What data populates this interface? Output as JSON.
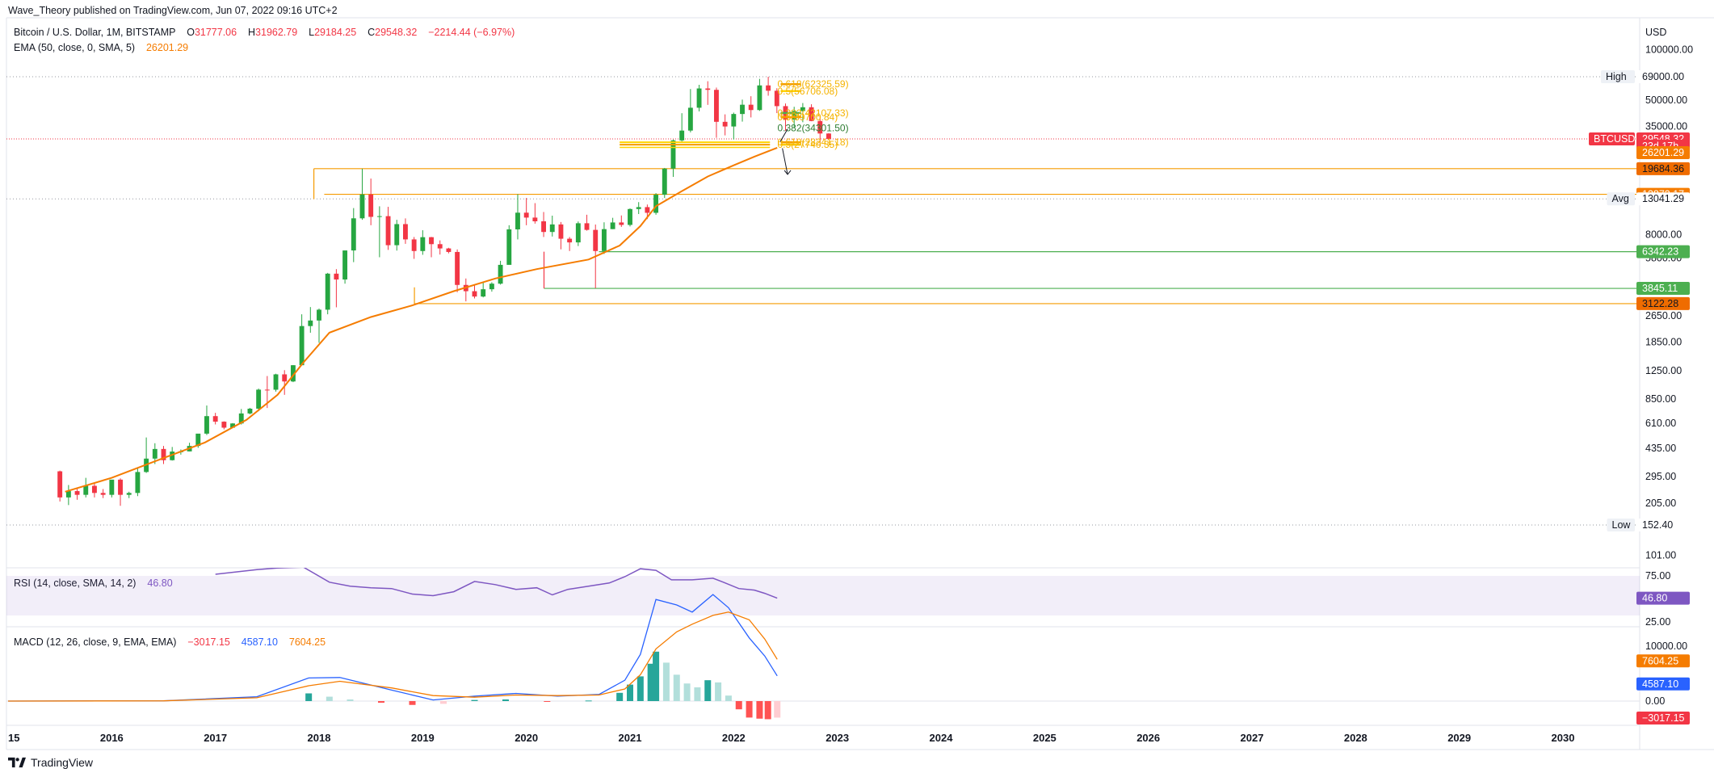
{
  "header": {
    "published": "Wave_Theory published on TradingView.com, Jun 07, 2022 09:16 UTC+2"
  },
  "legend": {
    "symbol": "Bitcoin / U.S. Dollar, 1M, BITSTAMP",
    "o_label": "O",
    "o_value": "31777.06",
    "h_label": "H",
    "h_value": "31962.79",
    "l_label": "L",
    "l_value": "29184.25",
    "c_label": "C",
    "c_value": "29548.32",
    "change": "−2214.44 (−6.97%)",
    "ema_label": "EMA (50, close, 0, SMA, 5)",
    "ema_value": "26201.29",
    "rsi_label": "RSI (14, close, SMA, 14, 2)",
    "rsi_value": "46.80",
    "macd_label": "MACD (12, 26, close, 9, EMA, EMA)",
    "macd_hist": "−3017.15",
    "macd_line": "4587.10",
    "macd_signal": "7604.25"
  },
  "price_axis": {
    "currency": "USD",
    "ticks": [
      "100000.00",
      "50000.00",
      "35000.00",
      "20000.00",
      "8000.00",
      "5800.00",
      "2650.00",
      "1850.00",
      "1250.00",
      "850.00",
      "610.00",
      "435.00",
      "295.00",
      "205.00",
      "101.00"
    ],
    "tick_values": [
      100000,
      50000,
      35000,
      20000,
      8000,
      5800,
      2650,
      1850,
      1250,
      850,
      610,
      435,
      295,
      205,
      101
    ],
    "badges": [
      {
        "text": "69000.00",
        "price": 69000,
        "tag": "High",
        "style": "plain"
      },
      {
        "text": "29548.32",
        "price": 29548.32,
        "tag": "BTCUSD",
        "style": "red"
      },
      {
        "text": "23d 17h",
        "price": 26800,
        "tag": "",
        "style": "red"
      },
      {
        "text": "26201.29",
        "price": 24500,
        "tag": "",
        "style": "orange"
      },
      {
        "text": "19684.36",
        "price": 19684.36,
        "tag": "",
        "style": "darkorange"
      },
      {
        "text": "13873.17",
        "price": 13873.17,
        "tag": "",
        "style": "orange"
      },
      {
        "text": "13041.29",
        "price": 13041.29,
        "tag": "Avg",
        "style": "plain"
      },
      {
        "text": "6342.23",
        "price": 6342.23,
        "tag": "",
        "style": "green"
      },
      {
        "text": "3845.11",
        "price": 3845.11,
        "tag": "",
        "style": "green"
      },
      {
        "text": "3122.28",
        "price": 3122.28,
        "tag": "",
        "style": "darkorange"
      },
      {
        "text": "152.40",
        "price": 152.4,
        "tag": "Low",
        "style": "plain"
      }
    ]
  },
  "rsi_axis": {
    "ticks": [
      "75.00",
      "25.00"
    ],
    "badge": "46.80"
  },
  "macd_axis": {
    "ticks": [
      "10000.00",
      "0.00"
    ],
    "badges": [
      {
        "text": "7604.25",
        "value": 7604.25,
        "style": "orange"
      },
      {
        "text": "4587.10",
        "value": 4587.1,
        "style": "blue"
      },
      {
        "text": "−3017.15",
        "value": -3017.15,
        "style": "red"
      }
    ]
  },
  "time_axis": {
    "labels": [
      "15",
      "2016",
      "2017",
      "2018",
      "2019",
      "2020",
      "2021",
      "2022",
      "2023",
      "2024",
      "2025",
      "2026",
      "2027",
      "2028",
      "2029",
      "2030"
    ],
    "years": [
      2015.0,
      2016,
      2017,
      2018,
      2019,
      2020,
      2021,
      2022,
      2023,
      2024,
      2025,
      2026,
      2027,
      2028,
      2029,
      2030
    ]
  },
  "fib_labels": [
    {
      "text": "0.618(62325.59)",
      "price": 62325.59
    },
    {
      "text": "0.5(56706.08)",
      "price": 56706.08
    },
    {
      "text": "0.382(42107.33)",
      "price": 42107.33
    },
    {
      "text": "0.5(39700.84)",
      "price": 39700.84
    },
    {
      "text": "0.382(34301.50)",
      "price": 34301.5,
      "color": "green"
    },
    {
      "text": "0.618(28241.18)",
      "price": 28241.18
    },
    {
      "text": "0.5(27740.35)",
      "price": 27300
    }
  ],
  "chart_data": {
    "type": "candlestick",
    "title": "Bitcoin / U.S. Dollar, 1M, BITSTAMP",
    "ylabel": "USD",
    "y_scale": "log",
    "ylim": [
      85,
      130000
    ],
    "x_range": [
      2014.9,
      2030.7
    ],
    "horizontal_levels": [
      69000,
      19684.36,
      13873.17,
      6342.23,
      3845.11,
      3122.28,
      152.4,
      13041.29
    ],
    "candles_ohlc": [
      [
        317,
        320,
        210,
        222
      ],
      [
        222,
        263,
        200,
        242
      ],
      [
        242,
        254,
        215,
        230
      ],
      [
        230,
        290,
        222,
        260
      ],
      [
        260,
        270,
        222,
        236
      ],
      [
        236,
        249,
        220,
        230
      ],
      [
        230,
        265,
        222,
        283
      ],
      [
        283,
        288,
        198,
        230
      ],
      [
        230,
        240,
        220,
        236
      ],
      [
        236,
        330,
        226,
        314
      ],
      [
        314,
        503,
        310,
        377
      ],
      [
        377,
        465,
        350,
        430
      ],
      [
        430,
        448,
        350,
        369
      ],
      [
        369,
        442,
        367,
        415
      ],
      [
        415,
        427,
        398,
        416
      ],
      [
        416,
        468,
        416,
        448
      ],
      [
        448,
        463,
        437,
        530
      ],
      [
        530,
        778,
        520,
        673
      ],
      [
        673,
        704,
        601,
        624
      ],
      [
        624,
        627,
        562,
        575
      ],
      [
        575,
        612,
        575,
        609
      ],
      [
        609,
        742,
        600,
        698
      ],
      [
        698,
        753,
        690,
        745
      ],
      [
        745,
        980,
        720,
        966
      ],
      [
        966,
        1163,
        752,
        965
      ],
      [
        965,
        1200,
        940,
        1190
      ],
      [
        1190,
        1260,
        900,
        1080
      ],
      [
        1080,
        1350,
        1070,
        1348
      ],
      [
        1348,
        2700,
        1350,
        2300
      ],
      [
        2300,
        2980,
        2100,
        2480
      ],
      [
        2480,
        2920,
        1830,
        2875
      ],
      [
        2875,
        4750,
        2700,
        4700
      ],
      [
        4700,
        5000,
        2970,
        4340
      ],
      [
        4340,
        6450,
        4100,
        6450
      ],
      [
        6450,
        11500,
        5500,
        10000
      ],
      [
        10000,
        19666,
        9800,
        13850
      ],
      [
        13850,
        17200,
        9100,
        10200
      ],
      [
        10200,
        11780,
        5880,
        10300
      ],
      [
        10300,
        11700,
        6500,
        6930
      ],
      [
        6930,
        9800,
        6440,
        9240
      ],
      [
        9240,
        9990,
        7060,
        7500
      ],
      [
        7500,
        7750,
        5750,
        6400
      ],
      [
        6400,
        8500,
        6080,
        7730
      ],
      [
        7730,
        7760,
        5880,
        7030
      ],
      [
        7030,
        7400,
        6100,
        6630
      ],
      [
        6630,
        6690,
        6200,
        6320
      ],
      [
        6320,
        6540,
        3650,
        4030
      ],
      [
        4030,
        4400,
        3220,
        3700
      ],
      [
        3700,
        4060,
        3350,
        3440
      ],
      [
        3440,
        4200,
        3400,
        3800
      ],
      [
        3800,
        4180,
        3680,
        4100
      ],
      [
        4100,
        5600,
        4050,
        5300
      ],
      [
        5300,
        9100,
        5350,
        8600
      ],
      [
        8600,
        13900,
        7500,
        10800
      ],
      [
        10800,
        13200,
        9100,
        10100
      ],
      [
        10100,
        12300,
        9300,
        9600
      ],
      [
        9600,
        10900,
        7750,
        8300
      ],
      [
        8300,
        10370,
        7800,
        9200
      ],
      [
        9200,
        9510,
        6550,
        7570
      ],
      [
        7570,
        7750,
        6400,
        7200
      ],
      [
        7200,
        9580,
        6850,
        9350
      ],
      [
        9350,
        10500,
        8450,
        8540
      ],
      [
        8540,
        9190,
        3850,
        6400
      ],
      [
        6400,
        9470,
        6150,
        8630
      ],
      [
        8630,
        10070,
        8630,
        9450
      ],
      [
        9450,
        10400,
        8900,
        9140
      ],
      [
        9140,
        11450,
        8950,
        11350
      ],
      [
        11350,
        12470,
        10600,
        11650
      ],
      [
        11650,
        12070,
        9900,
        10780
      ],
      [
        10780,
        14100,
        10500,
        13800
      ],
      [
        13800,
        19880,
        13200,
        19700
      ],
      [
        19700,
        29300,
        17600,
        28950
      ],
      [
        28950,
        41950,
        28150,
        33100
      ],
      [
        33100,
        58350,
        32300,
        45200
      ],
      [
        45200,
        61800,
        43000,
        58800
      ],
      [
        58800,
        64900,
        47000,
        57700
      ],
      [
        57700,
        59500,
        30000,
        37300
      ],
      [
        37300,
        41300,
        31000,
        35000
      ],
      [
        35000,
        42300,
        29300,
        41500
      ],
      [
        41500,
        50500,
        37400,
        47100
      ],
      [
        47100,
        52900,
        39600,
        43800
      ],
      [
        43800,
        67000,
        43300,
        61300
      ],
      [
        61300,
        69000,
        53250,
        57000
      ],
      [
        57000,
        59000,
        42000,
        46200
      ],
      [
        46200,
        47900,
        33000,
        38500
      ],
      [
        38500,
        45800,
        34300,
        43200
      ],
      [
        43200,
        48200,
        37100,
        45500
      ],
      [
        45500,
        47400,
        37600,
        37700
      ],
      [
        37700,
        40000,
        26700,
        31800
      ],
      [
        31800,
        31963,
        29184,
        29548
      ]
    ],
    "ema50_points": [
      [
        2015.55,
        240
      ],
      [
        2016.0,
        290
      ],
      [
        2016.5,
        380
      ],
      [
        2016.9,
        470
      ],
      [
        2017.3,
        640
      ],
      [
        2017.6,
        900
      ],
      [
        2017.85,
        1400
      ],
      [
        2018.1,
        2100
      ],
      [
        2018.5,
        2600
      ],
      [
        2018.9,
        3050
      ],
      [
        2019.3,
        3700
      ],
      [
        2019.7,
        4400
      ],
      [
        2020.1,
        5000
      ],
      [
        2020.6,
        5700
      ],
      [
        2020.9,
        6900
      ],
      [
        2021.1,
        9000
      ],
      [
        2021.25,
        11800
      ],
      [
        2021.5,
        14500
      ],
      [
        2021.75,
        17700
      ],
      [
        2022.0,
        20600
      ],
      [
        2022.2,
        23200
      ],
      [
        2022.42,
        26201
      ]
    ],
    "horizontal_rays": [
      {
        "price": 19684.36,
        "from": 2017.95,
        "color": "#f59b00"
      },
      {
        "price": 13873.17,
        "from": 2018.05,
        "color": "#f59b00"
      },
      {
        "price": 6342.23,
        "from": 2020.7,
        "color": "#4caf50"
      },
      {
        "price": 3845.11,
        "from": 2020.17,
        "color": "#4caf50"
      },
      {
        "price": 3122.28,
        "from": 2018.92,
        "color": "#f59b00"
      }
    ],
    "rsi_points": [
      [
        2017.0,
        77
      ],
      [
        2017.2,
        80
      ],
      [
        2017.4,
        83
      ],
      [
        2017.6,
        85
      ],
      [
        2017.85,
        86
      ],
      [
        2018.1,
        67
      ],
      [
        2018.3,
        62
      ],
      [
        2018.5,
        60
      ],
      [
        2018.7,
        59
      ],
      [
        2018.9,
        52
      ],
      [
        2019.1,
        50
      ],
      [
        2019.3,
        55
      ],
      [
        2019.5,
        68
      ],
      [
        2019.7,
        64
      ],
      [
        2019.9,
        58
      ],
      [
        2020.1,
        60
      ],
      [
        2020.25,
        51
      ],
      [
        2020.4,
        58
      ],
      [
        2020.6,
        62
      ],
      [
        2020.8,
        66
      ],
      [
        2020.95,
        74
      ],
      [
        2021.1,
        84
      ],
      [
        2021.25,
        82
      ],
      [
        2021.4,
        70
      ],
      [
        2021.6,
        70
      ],
      [
        2021.8,
        72
      ],
      [
        2021.9,
        67
      ],
      [
        2022.05,
        59
      ],
      [
        2022.2,
        57
      ],
      [
        2022.3,
        53
      ],
      [
        2022.42,
        46.8
      ]
    ],
    "macd_line": [
      [
        2015.0,
        0
      ],
      [
        2016.5,
        50
      ],
      [
        2017.4,
        800
      ],
      [
        2017.9,
        4200
      ],
      [
        2018.2,
        4300
      ],
      [
        2018.7,
        2000
      ],
      [
        2019.1,
        200
      ],
      [
        2019.5,
        900
      ],
      [
        2019.9,
        1400
      ],
      [
        2020.3,
        900
      ],
      [
        2020.7,
        1200
      ],
      [
        2020.95,
        3800
      ],
      [
        2021.1,
        8500
      ],
      [
        2021.25,
        18500
      ],
      [
        2021.45,
        17500
      ],
      [
        2021.6,
        16200
      ],
      [
        2021.8,
        19400
      ],
      [
        2021.95,
        17000
      ],
      [
        2022.15,
        11500
      ],
      [
        2022.3,
        8200
      ],
      [
        2022.42,
        4587
      ]
    ],
    "macd_signal": [
      [
        2015.0,
        0
      ],
      [
        2016.5,
        50
      ],
      [
        2017.4,
        600
      ],
      [
        2017.9,
        2800
      ],
      [
        2018.2,
        3600
      ],
      [
        2018.7,
        2400
      ],
      [
        2019.1,
        1000
      ],
      [
        2019.5,
        700
      ],
      [
        2019.9,
        1100
      ],
      [
        2020.3,
        1000
      ],
      [
        2020.7,
        1100
      ],
      [
        2020.95,
        2200
      ],
      [
        2021.1,
        4800
      ],
      [
        2021.25,
        9500
      ],
      [
        2021.45,
        12600
      ],
      [
        2021.6,
        14000
      ],
      [
        2021.8,
        15600
      ],
      [
        2021.95,
        16200
      ],
      [
        2022.15,
        14800
      ],
      [
        2022.3,
        11300
      ],
      [
        2022.42,
        7604
      ]
    ],
    "macd_hist": [
      [
        2017.9,
        1400
      ],
      [
        2018.1,
        800
      ],
      [
        2018.3,
        300
      ],
      [
        2018.6,
        -300
      ],
      [
        2018.9,
        -700
      ],
      [
        2019.2,
        -500
      ],
      [
        2019.5,
        200
      ],
      [
        2019.8,
        300
      ],
      [
        2020.2,
        -100
      ],
      [
        2020.6,
        100
      ],
      [
        2020.9,
        1500
      ],
      [
        2021.0,
        3000
      ],
      [
        2021.1,
        4500
      ],
      [
        2021.2,
        6800
      ],
      [
        2021.25,
        9000
      ],
      [
        2021.35,
        7000
      ],
      [
        2021.45,
        4800
      ],
      [
        2021.55,
        3200
      ],
      [
        2021.65,
        2500
      ],
      [
        2021.75,
        3800
      ],
      [
        2021.85,
        3400
      ],
      [
        2021.95,
        1000
      ],
      [
        2022.05,
        -1500
      ],
      [
        2022.15,
        -3000
      ],
      [
        2022.25,
        -3200
      ],
      [
        2022.33,
        -3300
      ],
      [
        2022.42,
        -3017
      ]
    ]
  }
}
